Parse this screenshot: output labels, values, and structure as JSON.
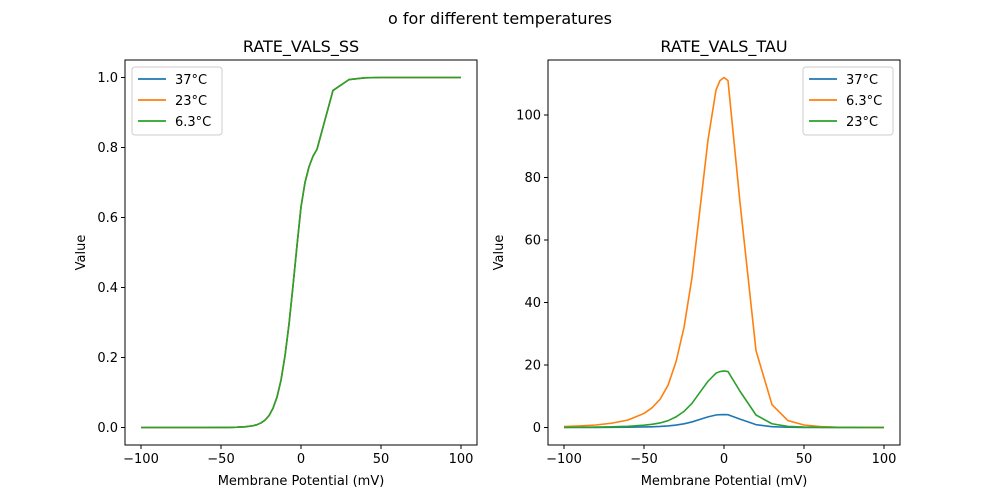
{
  "figure": {
    "suptitle": "o for different temperatures"
  },
  "chart_data": [
    {
      "type": "line",
      "title": "RATE_VALS_SS",
      "xlabel": "Membrane Potential (mV)",
      "ylabel": "Value",
      "xlim": [
        -110,
        110
      ],
      "ylim": [
        -0.05,
        1.05
      ],
      "xticks": [
        -100,
        -50,
        0,
        50,
        100
      ],
      "xtick_labels": [
        "−100",
        "−50",
        "0",
        "50",
        "100"
      ],
      "yticks": [
        0.0,
        0.2,
        0.4,
        0.6,
        0.8,
        1.0
      ],
      "ytick_labels": [
        "0.0",
        "0.2",
        "0.4",
        "0.6",
        "0.8",
        "1.0"
      ],
      "grid": false,
      "legend_position": "top-left",
      "x": [
        -100,
        -90,
        -80,
        -70,
        -60,
        -50,
        -45,
        -40,
        -35,
        -30,
        -27.5,
        -25,
        -22.5,
        -20,
        -17.5,
        -15,
        -12.5,
        -10,
        -7.5,
        -5,
        -2.5,
        0,
        2.5,
        5,
        7.5,
        10,
        20,
        30,
        40,
        50,
        60,
        70,
        80,
        90,
        100
      ],
      "series": [
        {
          "name": "37°C",
          "color": "#1f77b4",
          "values": [
            0,
            0,
            0,
            0,
            0,
            0.0001,
            0.0003,
            0.0008,
            0.002,
            0.005,
            0.008,
            0.013,
            0.021,
            0.034,
            0.055,
            0.087,
            0.135,
            0.205,
            0.295,
            0.405,
            0.52,
            0.63,
            0.7,
            0.745,
            0.775,
            0.795,
            0.963,
            0.994,
            0.999,
            1.0,
            1.0,
            1.0,
            1.0,
            1.0,
            1.0
          ]
        },
        {
          "name": "23°C",
          "color": "#ff7f0e",
          "values": [
            0,
            0,
            0,
            0,
            0,
            0.0001,
            0.0003,
            0.0008,
            0.002,
            0.005,
            0.008,
            0.013,
            0.021,
            0.034,
            0.055,
            0.087,
            0.135,
            0.205,
            0.295,
            0.405,
            0.52,
            0.63,
            0.7,
            0.745,
            0.775,
            0.795,
            0.963,
            0.994,
            0.999,
            1.0,
            1.0,
            1.0,
            1.0,
            1.0,
            1.0
          ]
        },
        {
          "name": "6.3°C",
          "color": "#2ca02c",
          "values": [
            0,
            0,
            0,
            0,
            0,
            0.0001,
            0.0003,
            0.0008,
            0.002,
            0.005,
            0.008,
            0.013,
            0.021,
            0.034,
            0.055,
            0.087,
            0.135,
            0.205,
            0.295,
            0.405,
            0.52,
            0.63,
            0.7,
            0.745,
            0.775,
            0.795,
            0.963,
            0.994,
            0.999,
            1.0,
            1.0,
            1.0,
            1.0,
            1.0,
            1.0
          ]
        }
      ]
    },
    {
      "type": "line",
      "title": "RATE_VALS_TAU",
      "xlabel": "Membrane Potential (mV)",
      "ylabel": "Value",
      "xlim": [
        -110,
        110
      ],
      "ylim": [
        -5.6,
        117.6
      ],
      "xticks": [
        -100,
        -50,
        0,
        50,
        100
      ],
      "xtick_labels": [
        "−100",
        "−50",
        "0",
        "50",
        "100"
      ],
      "yticks": [
        0,
        20,
        40,
        60,
        80,
        100
      ],
      "ytick_labels": [
        "0",
        "20",
        "40",
        "60",
        "80",
        "100"
      ],
      "grid": false,
      "legend_position": "top-right",
      "x": [
        -100,
        -90,
        -80,
        -70,
        -60,
        -50,
        -45,
        -40,
        -35,
        -30,
        -25,
        -20,
        -15,
        -10,
        -5,
        -2.5,
        0,
        2.5,
        10,
        20,
        30,
        40,
        50,
        60,
        70,
        80,
        90,
        100
      ],
      "series": [
        {
          "name": "37°C",
          "color": "#1f77b4",
          "values": [
            0.01,
            0.02,
            0.03,
            0.05,
            0.09,
            0.17,
            0.23,
            0.33,
            0.5,
            0.78,
            1.18,
            1.78,
            2.6,
            3.4,
            4.0,
            4.1,
            4.15,
            4.1,
            2.67,
            0.91,
            0.27,
            0.08,
            0.03,
            0.01,
            0.0,
            0.0,
            0.0,
            0.0
          ]
        },
        {
          "name": "6.3°C",
          "color": "#ff7f0e",
          "values": [
            0.3,
            0.5,
            0.8,
            1.4,
            2.4,
            4.5,
            6.3,
            9.0,
            13.5,
            21.0,
            32.0,
            48.0,
            70.0,
            92.0,
            108.0,
            111.0,
            112.0,
            111.0,
            72.0,
            24.6,
            7.3,
            2.2,
            0.8,
            0.3,
            0.1,
            0.05,
            0.02,
            0.01
          ]
        },
        {
          "name": "23°C",
          "color": "#2ca02c",
          "values": [
            0.05,
            0.08,
            0.13,
            0.23,
            0.39,
            0.73,
            1.02,
            1.45,
            2.18,
            3.39,
            5.16,
            7.74,
            11.3,
            14.8,
            17.4,
            17.9,
            18.1,
            17.9,
            11.6,
            4.0,
            1.2,
            0.35,
            0.13,
            0.05,
            0.02,
            0.01,
            0.0,
            0.0
          ]
        }
      ]
    }
  ]
}
